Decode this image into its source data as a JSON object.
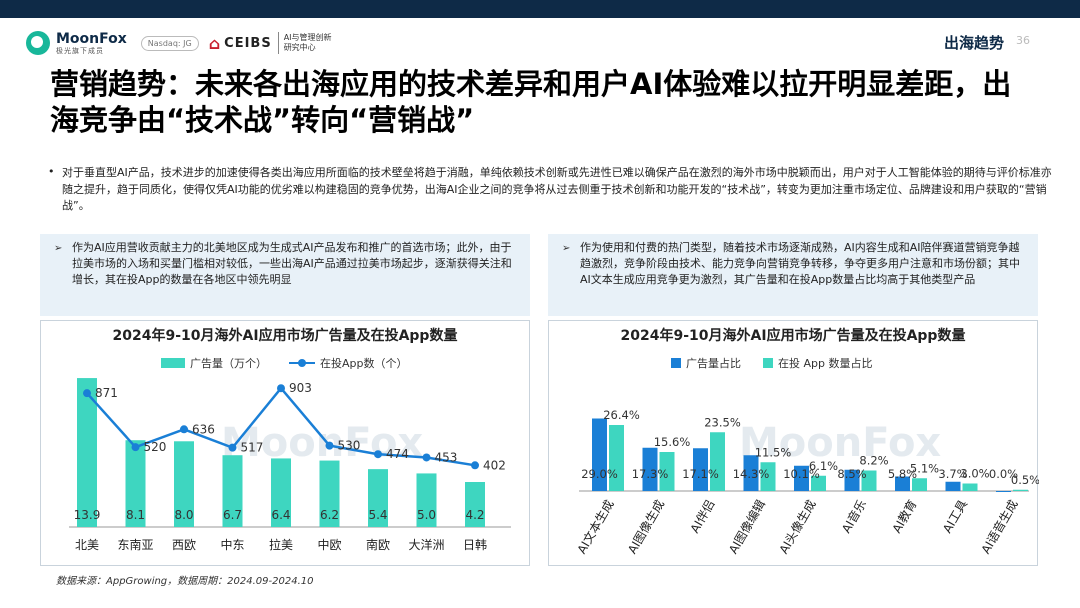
{
  "header": {
    "logo_name": "MoonFox",
    "logo_sub": "极光旗下成员",
    "nasdaq": "Nasdaq: JG",
    "ceibs": "CEIBS",
    "ceibs_cn_1": "AI与管理创新",
    "ceibs_cn_2": "研究中心",
    "section": "出海趋势",
    "page_number": "36"
  },
  "title": "营销趋势：未来各出海应用的技术差异和用户AI体验难以拉开明显差距，出海竞争由“技术战”转向“营销战”",
  "intro": "对于垂直型AI产品，技术进步的加速使得各类出海应用所面临的技术壁垒将趋于消融，单纯依赖技术创新或先进性已难以确保产品在激烈的海外市场中脱颖而出，用户对于人工智能体验的期待与评价标准亦随之提升，趋于同质化，使得仅凭AI功能的优劣难以构建稳固的竞争优势，出海AI企业之间的竞争将从过去侧重于技术创新和功能开发的“技术战”，转变为更加注重市场定位、品牌建设和用户获取的“营销战”。",
  "callouts": {
    "left": "作为AI应用营收贡献主力的北美地区成为生成式AI产品发布和推广的首选市场；此外，由于拉美市场的入场和买量门槛相对较低，一些出海AI产品通过拉美市场起步，逐渐获得关注和增长，其在投App的数量在各地区中领先明显",
    "right": "作为使用和付费的热门类型，随着技术市场逐渐成熟，AI内容生成和AI陪伴赛道营销竞争越趋激烈，竞争阶段由技术、能力竞争向营销竞争转移，争夺更多用户注意和市场份额；其中AI文本生成应用竞争更为激烈，其广告量和在投App数量占比均高于其他类型产品"
  },
  "watermark": "MoonFox",
  "source": "数据来源：AppGrowing，数据周期：2024.09-2024.10",
  "colors": {
    "teal": "#3ed6c0",
    "blue": "#1a7fd6",
    "navy": "#0e2a47",
    "callout_bg": "#e8f1f8"
  },
  "chart_data": [
    {
      "type": "bar",
      "title": "2024年9-10月海外AI应用市场广告量及在投App数量",
      "categories": [
        "北美",
        "东南亚",
        "西欧",
        "中东",
        "拉美",
        "中欧",
        "南欧",
        "大洋洲",
        "日韩"
      ],
      "series": [
        {
          "name": "广告量（万个）",
          "type": "bar",
          "values": [
            13.9,
            8.1,
            8.0,
            6.7,
            6.4,
            6.2,
            5.4,
            5.0,
            4.2
          ]
        },
        {
          "name": "在投App数（个）",
          "type": "line",
          "values": [
            871,
            520,
            636,
            517,
            903,
            530,
            474,
            453,
            402
          ]
        }
      ],
      "legend_position": "top"
    },
    {
      "type": "bar",
      "title": "2024年9-10月海外AI应用市场广告量及在投App数量",
      "categories": [
        "AI文本生成",
        "AI图像生成",
        "AI伴侣",
        "AI图像编辑",
        "AI头像生成",
        "AI音乐",
        "AI教育",
        "AI工具",
        "AI语音生成"
      ],
      "series": [
        {
          "name": "广告量占比",
          "values": [
            29.0,
            17.3,
            17.1,
            14.3,
            10.1,
            8.5,
            5.8,
            3.7,
            0.0
          ],
          "labels": [
            "29.0%",
            "17.3%",
            "17.1%",
            "14.3%",
            "10.1%",
            "8.5%",
            "5.8%",
            "3.7%",
            "0.0%"
          ]
        },
        {
          "name": "在投 App 数量占比",
          "values": [
            26.4,
            15.6,
            23.5,
            11.5,
            6.1,
            8.2,
            5.1,
            3.0,
            0.5
          ],
          "labels": [
            "26.4%",
            "15.6%",
            "23.5%",
            "11.5%",
            "6.1%",
            "8.2%",
            "5.1%",
            "3.0%",
            "0.5%"
          ]
        }
      ],
      "legend_position": "top"
    }
  ]
}
